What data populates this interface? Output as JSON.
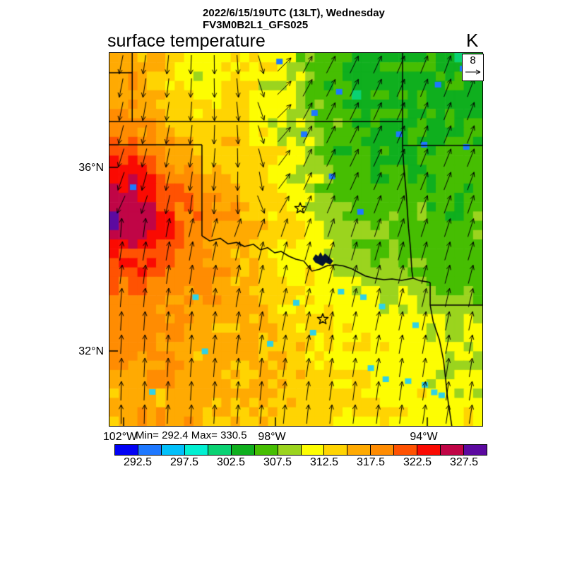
{
  "title": {
    "line1": "2022/6/15/19UTC (13LT), Wednesday",
    "line2": "FV3M0B2L1_GFS025"
  },
  "subtitle": "surface temperature",
  "units_label": "K",
  "stats": {
    "text": "Min= 292.4 Max= 330.5"
  },
  "vector_ref": {
    "value": "8"
  },
  "axes": {
    "lat_ticks": [
      {
        "label": "36°N",
        "y": 0.3068
      },
      {
        "label": "32°N",
        "y": 0.7992
      }
    ],
    "lon_ticks": [
      {
        "label": "102°W",
        "x": 0.0379
      },
      {
        "label": "98°W",
        "x": 0.4451
      },
      {
        "label": "94°W",
        "x": 0.8523
      }
    ]
  },
  "colorbar": {
    "min": 290,
    "max": 330,
    "step": 2.5,
    "colors": [
      "#0202f5",
      "#1e78ff",
      "#02c0fa",
      "#02f0d2",
      "#0ad273",
      "#0faf1e",
      "#46be02",
      "#9bd41e",
      "#fdfd02",
      "#ffd402",
      "#ffaa02",
      "#ff8c02",
      "#ff5202",
      "#fa0a02",
      "#c00546",
      "#5c0aa0"
    ],
    "tick_labels": [
      "292.5",
      "297.5",
      "302.5",
      "307.5",
      "312.5",
      "317.5",
      "322.5",
      "327.5"
    ],
    "tick_positions": [
      1,
      3,
      5,
      7,
      9,
      11,
      13,
      15
    ]
  },
  "chart_data": {
    "type": "heatmap",
    "variable": "surface temperature",
    "units": "K",
    "model": "FV3M0B2L1_GFS025",
    "valid_time": "2022/6/15/19UTC (13LT), Wednesday",
    "min": 292.4,
    "max": 330.5,
    "lon_range": [
      -102.4,
      -92.6
    ],
    "lat_range": [
      30.4,
      38.5
    ],
    "grid_shape": [
      16,
      16
    ],
    "grid": [
      [
        316,
        316,
        314,
        313,
        311,
        313,
        311,
        311,
        308,
        305,
        304,
        305,
        304,
        305,
        304,
        305
      ],
      [
        316,
        317,
        314,
        312,
        311,
        313,
        312,
        311,
        308,
        305,
        304,
        304,
        305,
        304,
        305,
        304
      ],
      [
        317,
        318,
        315,
        313,
        312,
        313,
        312,
        311,
        308,
        305,
        304,
        305,
        304,
        305,
        304,
        305
      ],
      [
        319,
        318,
        316,
        314,
        313,
        314,
        312,
        311,
        309,
        306,
        305,
        304,
        305,
        304,
        305,
        306
      ],
      [
        321,
        322,
        319,
        316,
        314,
        315,
        313,
        312,
        309,
        306,
        305,
        305,
        304,
        305,
        306,
        305
      ],
      [
        323,
        324,
        321,
        318,
        316,
        315,
        314,
        312,
        310,
        307,
        305,
        306,
        305,
        306,
        306,
        306
      ],
      [
        326,
        328,
        323,
        320,
        318,
        316,
        314,
        313,
        310,
        307,
        306,
        306,
        307,
        306,
        305,
        306
      ],
      [
        329,
        327,
        324,
        321,
        319,
        317,
        315,
        313,
        311,
        308,
        307,
        307,
        306,
        307,
        306,
        307
      ],
      [
        322,
        323,
        322,
        320,
        318,
        316,
        314,
        312,
        311,
        309,
        308,
        308,
        307,
        306,
        307,
        306
      ],
      [
        320,
        321,
        320,
        319,
        318,
        316,
        315,
        313,
        312,
        311,
        310,
        309,
        308,
        307,
        306,
        307
      ],
      [
        319,
        320,
        319,
        318,
        317,
        316,
        315,
        314,
        313,
        312,
        311,
        310,
        311,
        308,
        307,
        308
      ],
      [
        318,
        319,
        318,
        317,
        316,
        315,
        316,
        314,
        313,
        312,
        311,
        312,
        311,
        310,
        309,
        310
      ],
      [
        317,
        318,
        317,
        316,
        315,
        316,
        315,
        314,
        313,
        312,
        313,
        312,
        311,
        310,
        311,
        310
      ],
      [
        316,
        317,
        318,
        317,
        316,
        315,
        316,
        315,
        314,
        313,
        312,
        311,
        312,
        311,
        310,
        311
      ],
      [
        316,
        317,
        316,
        317,
        316,
        315,
        314,
        315,
        314,
        313,
        312,
        313,
        312,
        311,
        312,
        311
      ],
      [
        315,
        316,
        317,
        316,
        315,
        316,
        315,
        314,
        315,
        314,
        313,
        312,
        311,
        312,
        311,
        312
      ]
    ],
    "wind": {
      "reference_value": "8",
      "grid_shape": [
        9,
        9
      ],
      "u": [
        [
          -0.2,
          -0.1,
          0.0,
          0.1,
          0.5,
          0.5,
          0.45,
          0.4,
          0.35
        ],
        [
          -0.2,
          -0.15,
          0.0,
          0.15,
          0.5,
          0.5,
          0.45,
          0.4,
          0.4
        ],
        [
          -0.3,
          -0.2,
          -0.1,
          0.1,
          0.45,
          0.5,
          0.45,
          0.4,
          0.4
        ],
        [
          -0.3,
          -0.2,
          -0.1,
          0.0,
          0.4,
          0.45,
          0.4,
          0.4,
          0.35
        ],
        [
          0.15,
          0.2,
          0.2,
          0.25,
          0.3,
          0.3,
          0.3,
          0.3,
          0.3
        ],
        [
          0.1,
          0.12,
          0.15,
          0.2,
          0.25,
          0.25,
          0.25,
          0.25,
          0.25
        ],
        [
          0.05,
          0.08,
          0.1,
          0.15,
          0.2,
          0.2,
          0.2,
          0.2,
          0.2
        ],
        [
          0.05,
          0.05,
          0.08,
          0.1,
          0.15,
          0.15,
          0.15,
          0.15,
          0.15
        ],
        [
          0.0,
          0.05,
          0.05,
          0.08,
          0.1,
          0.12,
          0.12,
          0.15,
          0.15
        ]
      ],
      "v": [
        [
          1,
          1,
          1,
          1,
          -0.9,
          -1,
          -1,
          -1,
          -1
        ],
        [
          1,
          1,
          1,
          1,
          -0.9,
          -1,
          -1,
          -1,
          -1
        ],
        [
          1,
          1,
          1,
          1,
          -1,
          -1,
          -1,
          -1,
          -1
        ],
        [
          0.8,
          0.9,
          1,
          1,
          -0.9,
          -1,
          -1,
          -1,
          -1
        ],
        [
          -0.9,
          -1,
          -1,
          -1,
          -1,
          -1,
          -1,
          -1,
          -1
        ],
        [
          -1,
          -1,
          -1,
          -1,
          -1,
          -1,
          -1,
          -1,
          -1
        ],
        [
          -1,
          -1,
          -1,
          -1,
          -1,
          -1,
          -1,
          -1,
          -1
        ],
        [
          -1,
          -1,
          -1,
          -1,
          -1,
          -1,
          -1,
          -1,
          -1
        ],
        [
          -1,
          -1,
          -1,
          -1,
          -1,
          -1,
          -1,
          -1,
          -1
        ]
      ]
    },
    "markers": [
      {
        "name": "city-star",
        "x": 0.5114,
        "y": 0.4167
      },
      {
        "name": "city-star",
        "x": 0.572,
        "y": 0.714
      }
    ],
    "borders": [
      [
        [
          0,
          0.184
        ],
        [
          0.786,
          0.184
        ]
      ],
      [
        [
          0.786,
          0
        ],
        [
          0.786,
          0.184
        ]
      ],
      [
        [
          0.061,
          0
        ],
        [
          0.061,
          0.184
        ]
      ],
      [
        [
          0,
          0.053
        ],
        [
          0.061,
          0.053
        ]
      ],
      [
        [
          0,
          0.246
        ],
        [
          0.248,
          0.246
        ]
      ],
      [
        [
          0.248,
          0.246
        ],
        [
          0.248,
          0.4905
        ]
      ],
      [
        [
          0.786,
          0.248
        ],
        [
          1,
          0.248
        ]
      ],
      [
        [
          0.786,
          0.184
        ],
        [
          0.786,
          0.248
        ],
        [
          0.789,
          0.3
        ],
        [
          0.796,
          0.38
        ],
        [
          0.802,
          0.47
        ],
        [
          0.807,
          0.52
        ],
        [
          0.811,
          0.585
        ],
        [
          0.814,
          0.604
        ]
      ],
      [
        [
          0.86,
          0.6155
        ],
        [
          0.86,
          0.676
        ]
      ],
      [
        [
          0.86,
          0.676
        ],
        [
          1,
          0.676
        ]
      ],
      [
        [
          0.86,
          0.676
        ],
        [
          0.868,
          0.72
        ],
        [
          0.885,
          0.77
        ],
        [
          0.896,
          0.825
        ],
        [
          0.901,
          0.87
        ],
        [
          0.906,
          0.92
        ],
        [
          0.912,
          0.96
        ],
        [
          0.918,
          1
        ]
      ]
    ],
    "river": [
      [
        0.248,
        0.4905
      ],
      [
        0.269,
        0.504
      ],
      [
        0.297,
        0.497
      ],
      [
        0.318,
        0.512
      ],
      [
        0.341,
        0.508
      ],
      [
        0.362,
        0.519
      ],
      [
        0.386,
        0.513
      ],
      [
        0.405,
        0.528
      ],
      [
        0.424,
        0.522
      ],
      [
        0.443,
        0.536
      ],
      [
        0.46,
        0.532
      ],
      [
        0.481,
        0.545
      ],
      [
        0.5,
        0.553
      ],
      [
        0.521,
        0.558
      ],
      [
        0.543,
        0.585
      ],
      [
        0.563,
        0.58
      ],
      [
        0.585,
        0.57
      ],
      [
        0.606,
        0.568
      ],
      [
        0.627,
        0.571
      ],
      [
        0.648,
        0.578
      ],
      [
        0.667,
        0.588
      ],
      [
        0.686,
        0.598
      ],
      [
        0.71,
        0.604
      ],
      [
        0.736,
        0.608
      ],
      [
        0.758,
        0.606
      ],
      [
        0.783,
        0.61
      ],
      [
        0.814,
        0.604
      ],
      [
        0.833,
        0.611
      ],
      [
        0.849,
        0.613
      ],
      [
        0.86,
        0.6155
      ]
    ],
    "lake_polygon": [
      [
        0.545,
        0.552
      ],
      [
        0.553,
        0.54
      ],
      [
        0.56,
        0.545
      ],
      [
        0.566,
        0.534
      ],
      [
        0.572,
        0.545
      ],
      [
        0.578,
        0.538
      ],
      [
        0.59,
        0.548
      ],
      [
        0.6,
        0.558
      ],
      [
        0.592,
        0.568
      ],
      [
        0.58,
        0.562
      ],
      [
        0.572,
        0.572
      ],
      [
        0.56,
        0.566
      ],
      [
        0.552,
        0.562
      ]
    ],
    "lake_speck_colors": {
      "b": "#1e78ff",
      "c": "#2fd2e6"
    },
    "lake_specks": [
      [
        0.455,
        0.023,
        "b"
      ],
      [
        0.88,
        0.085,
        "b"
      ],
      [
        0.947,
        0.042,
        "b"
      ],
      [
        0.615,
        0.104,
        "b"
      ],
      [
        0.549,
        0.161,
        "b"
      ],
      [
        0.521,
        0.218,
        "b"
      ],
      [
        0.776,
        0.218,
        "b"
      ],
      [
        0.843,
        0.246,
        "b"
      ],
      [
        0.956,
        0.252,
        "b"
      ],
      [
        0.596,
        0.331,
        "b"
      ],
      [
        0.672,
        0.426,
        "b"
      ],
      [
        0.0625,
        0.36,
        "b"
      ],
      [
        0.23,
        0.655,
        "c"
      ],
      [
        0.62,
        0.64,
        "c"
      ],
      [
        0.5,
        0.67,
        "c"
      ],
      [
        0.68,
        0.655,
        "c"
      ],
      [
        0.73,
        0.68,
        "c"
      ],
      [
        0.82,
        0.73,
        "c"
      ],
      [
        0.545,
        0.75,
        "c"
      ],
      [
        0.43,
        0.78,
        "c"
      ],
      [
        0.255,
        0.8,
        "c"
      ],
      [
        0.7,
        0.845,
        "c"
      ],
      [
        0.74,
        0.875,
        "c"
      ],
      [
        0.8,
        0.88,
        "c"
      ],
      [
        0.845,
        0.89,
        "c"
      ],
      [
        0.87,
        0.91,
        "c"
      ],
      [
        0.89,
        0.918,
        "c"
      ],
      [
        0.114,
        0.909,
        "c"
      ]
    ]
  }
}
